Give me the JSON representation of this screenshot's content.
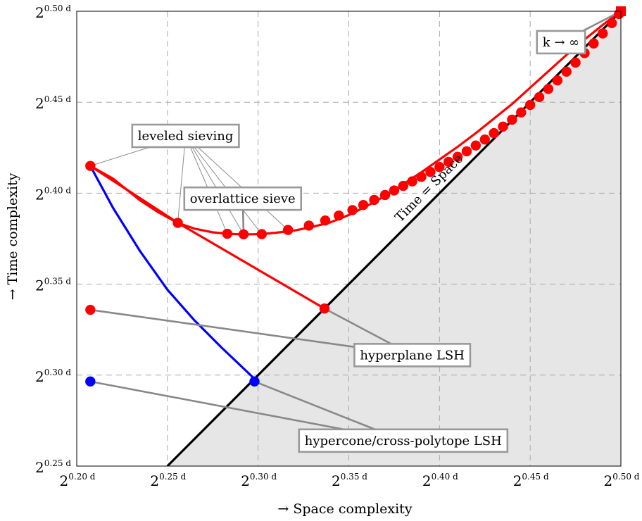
{
  "chart_data": {
    "type": "line",
    "x_axis": {
      "label": "→ Space complexity",
      "lim": [
        0.2,
        0.5
      ],
      "ticks": [
        0.2,
        0.25,
        0.3,
        0.35,
        0.4,
        0.45,
        0.5
      ],
      "tick_labels": [
        {
          "base": "2",
          "exp": "0.20 d"
        },
        {
          "base": "2",
          "exp": "0.25 d"
        },
        {
          "base": "2",
          "exp": "0.30 d"
        },
        {
          "base": "2",
          "exp": "0.35 d"
        },
        {
          "base": "2",
          "exp": "0.40 d"
        },
        {
          "base": "2",
          "exp": "0.45 d"
        },
        {
          "base": "2",
          "exp": "0.50 d"
        }
      ]
    },
    "y_axis": {
      "label": "→ Time complexity",
      "lim": [
        0.25,
        0.5
      ],
      "ticks": [
        0.25,
        0.3,
        0.35,
        0.4,
        0.45,
        0.5
      ],
      "tick_labels": [
        {
          "base": "2",
          "exp": "0.25 d"
        },
        {
          "base": "2",
          "exp": "0.30 d"
        },
        {
          "base": "2",
          "exp": "0.35 d"
        },
        {
          "base": "2",
          "exp": "0.40 d"
        },
        {
          "base": "2",
          "exp": "0.45 d"
        },
        {
          "base": "2",
          "exp": "0.50 d"
        }
      ]
    },
    "grid": true,
    "diagonal": {
      "label": "Time = Space",
      "from": [
        0.25,
        0.25
      ],
      "to": [
        0.5,
        0.5
      ],
      "color": "#000000",
      "fill_below": "#e6e6e6"
    },
    "series": [
      {
        "id": "leveled-sieving-curve",
        "color": "#ff0000",
        "points": [
          [
            0.2075,
            0.415
          ],
          [
            0.22,
            0.408
          ],
          [
            0.235,
            0.396
          ],
          [
            0.245,
            0.3895
          ],
          [
            0.2557,
            0.3837
          ],
          [
            0.265,
            0.3805
          ],
          [
            0.275,
            0.3785
          ],
          [
            0.283,
            0.3777
          ],
          [
            0.29,
            0.3774
          ],
          [
            0.296,
            0.3774
          ],
          [
            0.302,
            0.3775
          ],
          [
            0.31,
            0.3783
          ],
          [
            0.32,
            0.3795
          ],
          [
            0.33,
            0.3815
          ],
          [
            0.34,
            0.384
          ],
          [
            0.35,
            0.388
          ],
          [
            0.36,
            0.393
          ],
          [
            0.37,
            0.3985
          ],
          [
            0.38,
            0.405
          ],
          [
            0.39,
            0.4115
          ],
          [
            0.4,
            0.4185
          ],
          [
            0.41,
            0.4255
          ],
          [
            0.42,
            0.433
          ],
          [
            0.43,
            0.441
          ],
          [
            0.44,
            0.449
          ],
          [
            0.45,
            0.458
          ],
          [
            0.46,
            0.467
          ],
          [
            0.47,
            0.476
          ],
          [
            0.48,
            0.4845
          ],
          [
            0.49,
            0.4925
          ],
          [
            0.5,
            0.5
          ]
        ]
      },
      {
        "id": "leveled-sieving-chord",
        "color": "#ff0000",
        "points": [
          [
            0.2075,
            0.415
          ],
          [
            0.2557,
            0.3837
          ]
        ]
      },
      {
        "id": "hyperplane-lsh-tradeoff",
        "color": "#ff0000",
        "points": [
          [
            0.2075,
            0.415
          ],
          [
            0.2557,
            0.3837
          ],
          [
            0.3366,
            0.3366
          ]
        ]
      },
      {
        "id": "hypercone-lsh-tradeoff",
        "color": "#0000ff",
        "points": [
          [
            0.2075,
            0.415
          ],
          [
            0.22,
            0.392
          ],
          [
            0.235,
            0.368
          ],
          [
            0.25,
            0.347
          ],
          [
            0.265,
            0.33
          ],
          [
            0.28,
            0.315
          ],
          [
            0.298,
            0.298
          ]
        ]
      }
    ],
    "markers": [
      {
        "series": "leveled",
        "color": "#ff0000",
        "points": [
          [
            0.2075,
            0.415
          ],
          [
            0.2557,
            0.3837
          ],
          [
            0.283,
            0.3777
          ],
          [
            0.292,
            0.3774
          ],
          [
            0.302,
            0.3775
          ],
          [
            0.3165,
            0.3798
          ],
          [
            0.328,
            0.3822
          ],
          [
            0.337,
            0.385
          ],
          [
            0.3445,
            0.3877
          ],
          [
            0.352,
            0.3907
          ],
          [
            0.358,
            0.3935
          ],
          [
            0.364,
            0.3963
          ],
          [
            0.37,
            0.399
          ],
          [
            0.375,
            0.4015
          ],
          [
            0.38,
            0.404
          ],
          [
            0.385,
            0.4065
          ],
          [
            0.39,
            0.409
          ],
          [
            0.395,
            0.4117
          ],
          [
            0.4,
            0.4144
          ],
          [
            0.405,
            0.4172
          ],
          [
            0.41,
            0.42
          ],
          [
            0.415,
            0.423
          ],
          [
            0.42,
            0.4262
          ],
          [
            0.425,
            0.4295
          ],
          [
            0.43,
            0.433
          ],
          [
            0.435,
            0.4366
          ],
          [
            0.44,
            0.4404
          ],
          [
            0.445,
            0.4444
          ],
          [
            0.45,
            0.4485
          ],
          [
            0.455,
            0.4528
          ],
          [
            0.46,
            0.4573
          ],
          [
            0.465,
            0.462
          ],
          [
            0.47,
            0.4668
          ],
          [
            0.475,
            0.4718
          ],
          [
            0.48,
            0.477
          ],
          [
            0.485,
            0.4823
          ],
          [
            0.49,
            0.4878
          ],
          [
            0.495,
            0.4935
          ],
          [
            0.499,
            0.4985
          ]
        ]
      },
      {
        "series": "hyperplane",
        "color": "#ff0000",
        "points": [
          [
            0.2075,
            0.3359
          ],
          [
            0.3366,
            0.3366
          ]
        ]
      },
      {
        "series": "hypercone",
        "color": "#0000ff",
        "points": [
          [
            0.2075,
            0.2965
          ],
          [
            0.298,
            0.2965
          ]
        ]
      }
    ],
    "annotations": [
      {
        "id": "leveled",
        "text": "leveled sieving",
        "box_at": [
          0.26,
          0.4315
        ],
        "targets": [
          [
            0.2075,
            0.415
          ],
          [
            0.2557,
            0.3837
          ],
          [
            0.283,
            0.3777
          ],
          [
            0.292,
            0.3774
          ],
          [
            0.302,
            0.3775
          ],
          [
            0.3165,
            0.3798
          ]
        ]
      },
      {
        "id": "overlattice",
        "text": "overlattice sieve",
        "box_at": [
          0.2915,
          0.397
        ],
        "targets": [
          [
            0.292,
            0.3774
          ]
        ]
      },
      {
        "id": "hyperplane",
        "text": "hyperplane LSH",
        "box_at": [
          0.385,
          0.311
        ],
        "targets": [
          [
            0.2075,
            0.3359
          ],
          [
            0.3366,
            0.3366
          ]
        ]
      },
      {
        "id": "hypercone",
        "text": "hypercone/cross-polytope LSH",
        "box_at": [
          0.38,
          0.264
        ],
        "targets": [
          [
            0.2075,
            0.2965
          ],
          [
            0.298,
            0.2965
          ]
        ]
      },
      {
        "id": "kinf",
        "text": "k → ∞",
        "box_at": [
          0.467,
          0.483
        ],
        "targets": [
          [
            0.5,
            0.5
          ]
        ]
      }
    ]
  }
}
